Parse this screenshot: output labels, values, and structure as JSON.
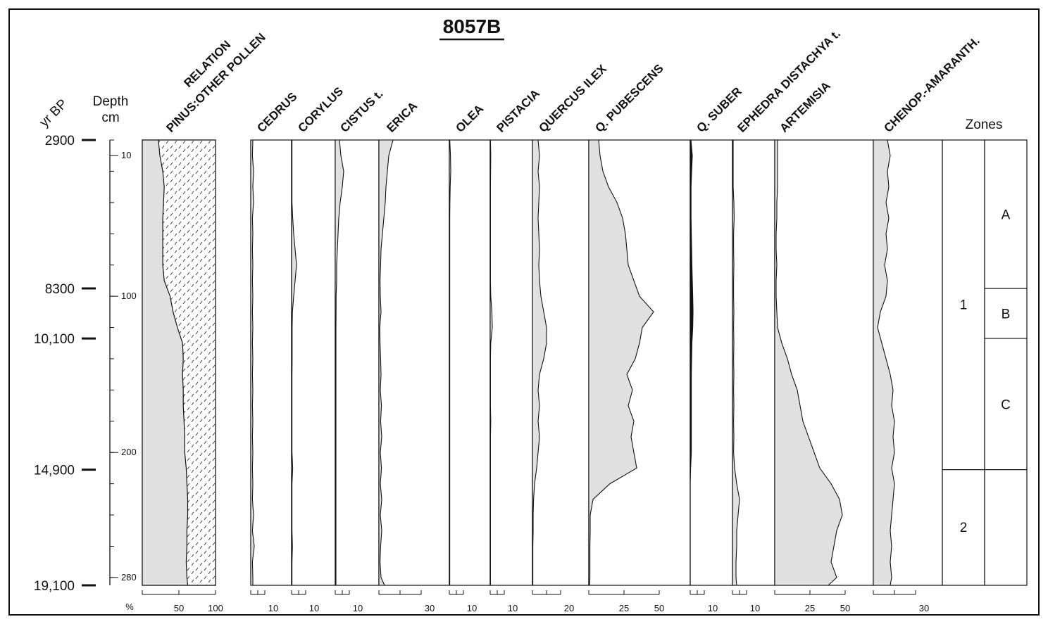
{
  "title": "8057B",
  "age_axis_label": "yr BP",
  "depth_axis_label": [
    "Depth",
    "cm"
  ],
  "zones_label": "Zones",
  "chart_data": {
    "type": "area",
    "title": "8057B",
    "ylabel": "Depth cm",
    "depth_range": [
      0,
      285
    ],
    "depth_ticks": [
      10,
      100,
      200,
      280
    ],
    "ages": [
      {
        "label": "2900",
        "depth": 0
      },
      {
        "label": "8300",
        "depth": 95
      },
      {
        "label": "10,100",
        "depth": 127
      },
      {
        "label": "14,900",
        "depth": 211
      },
      {
        "label": "19,100",
        "depth": 285
      }
    ],
    "depths": [
      0,
      10,
      20,
      30,
      40,
      50,
      60,
      70,
      80,
      90,
      100,
      110,
      120,
      130,
      140,
      150,
      160,
      170,
      180,
      190,
      200,
      210,
      220,
      230,
      240,
      250,
      260,
      270,
      280,
      285
    ],
    "taxa": [
      {
        "name": "PINUS:OTHER POLLEN",
        "header": [
          "RELATION",
          "PINUS:OTHER POLLEN"
        ],
        "type": "relation",
        "scale_max": 100,
        "ticks": [
          50,
          100
        ],
        "tick_labels": [
          "50",
          "100"
        ],
        "unit": "%",
        "values": [
          22,
          24,
          28,
          30,
          29,
          28,
          28,
          28,
          28,
          30,
          38,
          42,
          48,
          55,
          56,
          55,
          56,
          56,
          57,
          58,
          58,
          60,
          61,
          62,
          62,
          61,
          61,
          60,
          61,
          62
        ]
      },
      {
        "name": "CEDRUS",
        "type": "area",
        "scale_max": 10,
        "ticks": [
          5,
          10
        ],
        "tick_labels": [
          "10"
        ],
        "values": [
          1.5,
          1.2,
          2,
          1.5,
          2,
          1.2,
          1.5,
          1.2,
          1.5,
          1.2,
          1.5,
          1.2,
          1.5,
          1.2,
          1.5,
          1.2,
          1.5,
          1.2,
          1.5,
          1.2,
          1.5,
          1.2,
          1.5,
          1.2,
          2,
          1.2,
          2.5,
          1.2,
          1.5,
          1.5
        ]
      },
      {
        "name": "CORYLUS",
        "type": "area",
        "scale_max": 10,
        "ticks": [
          5,
          10
        ],
        "tick_labels": [
          "10"
        ],
        "values": [
          0.3,
          0.3,
          0.3,
          0.3,
          0.3,
          0.8,
          1.5,
          2.5,
          3.5,
          2.5,
          1.5,
          0.6,
          0.4,
          0.4,
          0.4,
          0.3,
          0.3,
          0.3,
          0.3,
          0.3,
          0.3,
          0.8,
          0.3,
          0.3,
          0.3,
          0.3,
          0.6,
          0.3,
          0.3,
          0.3
        ]
      },
      {
        "name": "CISTUS t.",
        "type": "area",
        "scale_max": 10,
        "ticks": [
          5,
          10
        ],
        "tick_labels": [
          "10"
        ],
        "values": [
          3,
          4,
          6,
          5,
          3.5,
          2.5,
          2,
          1.5,
          1,
          1,
          0.6,
          0.6,
          0.5,
          0.5,
          0.5,
          0.5,
          0.5,
          0.5,
          0.5,
          0.5,
          0.5,
          0.5,
          0.5,
          0.5,
          0.5,
          0.5,
          0.5,
          0.5,
          0.5,
          0.5
        ]
      },
      {
        "name": "ERICA",
        "type": "area",
        "scale_max": 30,
        "ticks": [
          15,
          30
        ],
        "tick_labels": [
          "30"
        ],
        "values": [
          10,
          7,
          6,
          5,
          4.5,
          3.5,
          2.5,
          1.5,
          1.2,
          0.8,
          1,
          1.5,
          0.6,
          0.8,
          1.2,
          1.5,
          1,
          1.8,
          1.2,
          2,
          1,
          1.8,
          1,
          2,
          1,
          2,
          1.2,
          0.8,
          1.5,
          4
        ]
      },
      {
        "name": "OLEA",
        "type": "area",
        "scale_max": 10,
        "ticks": [
          5,
          10
        ],
        "tick_labels": [
          "10"
        ],
        "values": [
          0.3,
          0.8,
          1,
          0.6,
          0.4,
          0.3,
          0.3,
          0.3,
          0.3,
          0.3,
          0.3,
          0.3,
          0.3,
          0.3,
          0.3,
          0.3,
          0.3,
          0.3,
          0.3,
          0.3,
          0.3,
          0.3,
          0.3,
          0.3,
          0.3,
          0.3,
          0.3,
          0.3,
          0.3,
          0.3
        ]
      },
      {
        "name": "PISTACIA",
        "type": "area",
        "scale_max": 10,
        "ticks": [
          5,
          10
        ],
        "tick_labels": [
          "10"
        ],
        "values": [
          0.2,
          0.4,
          0.3,
          0.2,
          0.2,
          0.2,
          0.2,
          0.2,
          0.2,
          0.2,
          0.4,
          1.2,
          1.5,
          0.4,
          0.2,
          0.2,
          0.2,
          0.2,
          0.4,
          0.2,
          0.2,
          0.2,
          0.2,
          0.2,
          0.2,
          0.2,
          0.2,
          0.2,
          0.2,
          0.2
        ]
      },
      {
        "name": "QUERCUS ILEX",
        "type": "area",
        "scale_max": 20,
        "ticks": [
          10,
          20
        ],
        "tick_labels": [
          "20"
        ],
        "values": [
          4,
          5,
          4,
          5,
          4.5,
          4,
          4.5,
          5,
          4.5,
          5,
          6,
          8,
          10,
          10,
          8,
          5,
          4,
          5,
          4,
          5,
          4,
          3,
          1.5,
          0.8,
          0.5,
          0.5,
          0.3,
          0.3,
          0.3,
          0.3
        ]
      },
      {
        "name": "Q. PUBESCENS",
        "type": "area",
        "scale_max": 50,
        "ticks": [
          25,
          50
        ],
        "tick_labels": [
          "25",
          "50"
        ],
        "values": [
          7,
          8,
          10,
          14,
          20,
          24,
          26,
          27,
          28,
          32,
          36,
          46,
          38,
          36,
          33,
          27,
          31,
          28,
          32,
          30,
          32,
          34,
          15,
          3,
          1,
          1,
          0.8,
          0.8,
          0.8,
          0.5
        ]
      },
      {
        "name": "Q. SUBER",
        "type": "solid",
        "scale_max": 10,
        "ticks": [
          5,
          10
        ],
        "tick_labels": [
          "10"
        ],
        "values": [
          0.5,
          1.5,
          1,
          0.6,
          0.6,
          0.6,
          0.8,
          1,
          1.2,
          1.5,
          1.8,
          2,
          1.8,
          1.2,
          1,
          0.8,
          0.8,
          0.8,
          0.8,
          0.8,
          0.8,
          0.3,
          0,
          0,
          0,
          0,
          0,
          0,
          0,
          0
        ]
      },
      {
        "name": "EPHEDRA DISTACHYA t.",
        "type": "area",
        "scale_max": 10,
        "ticks": [
          5,
          10
        ],
        "tick_labels": [
          "10"
        ],
        "values": [
          0.5,
          0.5,
          0.5,
          0.5,
          1,
          1.2,
          0.8,
          0.8,
          1,
          0.8,
          0.8,
          1,
          0.8,
          1,
          0.8,
          1,
          0.8,
          1,
          0.8,
          1,
          0.8,
          1.5,
          3,
          5,
          4,
          3,
          3,
          2.5,
          2.5,
          3
        ]
      },
      {
        "name": "ARTEMISIA",
        "type": "area",
        "scale_max": 50,
        "ticks": [
          25,
          50
        ],
        "tick_labels": [
          "25",
          "50"
        ],
        "values": [
          2,
          2,
          2,
          2,
          1.5,
          1.5,
          1,
          1,
          1.5,
          1,
          1,
          1.5,
          2,
          5,
          9,
          12,
          16,
          18,
          20,
          24,
          28,
          32,
          40,
          46,
          48,
          44,
          42,
          40,
          44,
          38
        ]
      },
      {
        "name": "CHENOP.-AMARANTH.",
        "type": "area",
        "scale_max": 30,
        "ticks": [
          15,
          30
        ],
        "tick_labels": [
          "30"
        ],
        "values": [
          10,
          12,
          10,
          11,
          9,
          11,
          9,
          10,
          8,
          10,
          9,
          5,
          3,
          6,
          9,
          12,
          14,
          13,
          15,
          14,
          15,
          13,
          15,
          14,
          13,
          12,
          13,
          12,
          13,
          12
        ]
      }
    ],
    "local_zones": [
      {
        "label": "1",
        "from": 0,
        "to": 211
      },
      {
        "label": "2",
        "from": 211,
        "to": 285
      }
    ],
    "subzones": [
      {
        "label": "A",
        "from": 0,
        "to": 95
      },
      {
        "label": "B",
        "from": 95,
        "to": 127
      },
      {
        "label": "C",
        "from": 127,
        "to": 211
      },
      {
        "label": "",
        "from": 211,
        "to": 285
      }
    ]
  }
}
